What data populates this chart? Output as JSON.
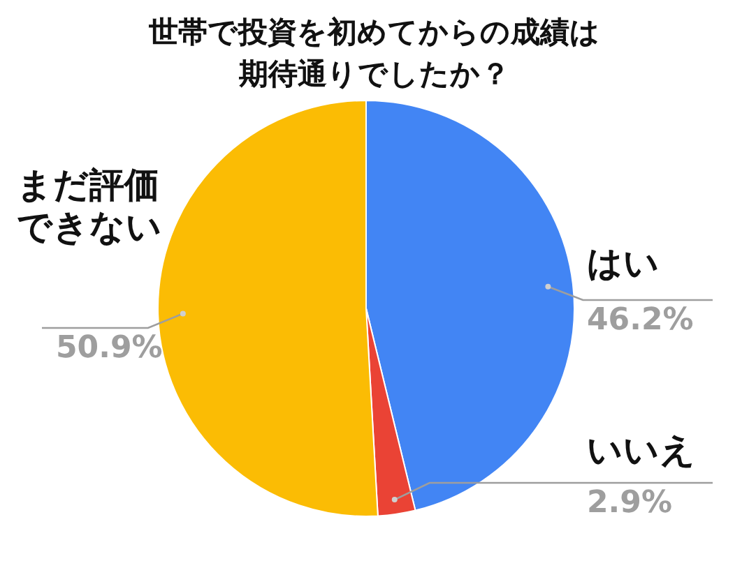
{
  "chart_data": {
    "type": "pie",
    "title": "世帯で投資を初めてからの成績は期待通りでしたか？",
    "categories": [
      "はい",
      "いいえ",
      "まだ評価できない"
    ],
    "values": [
      46.2,
      2.9,
      50.9
    ],
    "colors": [
      "#4285f4",
      "#ea4335",
      "#fbbc04"
    ],
    "value_labels": [
      "46.2%",
      "2.9%",
      "50.9%"
    ]
  }
}
